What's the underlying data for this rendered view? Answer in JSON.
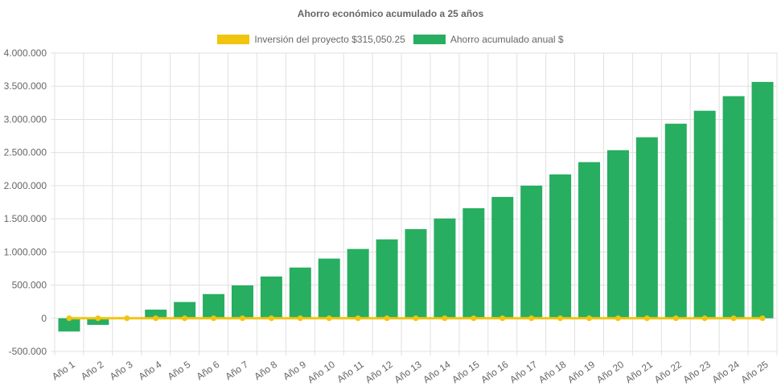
{
  "chart_data": {
    "type": "bar",
    "title": "Ahorro económico acumulado a 25 años",
    "categories": [
      "Año 1",
      "Año 2",
      "Año 3",
      "Año 4",
      "Año 5",
      "Año 6",
      "Año 7",
      "Año 8",
      "Año 9",
      "Año 10",
      "Año 11",
      "Año 12",
      "Año 13",
      "Año 14",
      "Año 15",
      "Año 16",
      "Año 17",
      "Año 18",
      "Año 19",
      "Año 20",
      "Año 21",
      "Año 22",
      "Año 23",
      "Año 24",
      "Año 25"
    ],
    "series": [
      {
        "name": "Inversión del proyecto $315,050.25",
        "type": "line",
        "color": "#f1c40f",
        "values": [
          0,
          0,
          0,
          0,
          0,
          0,
          0,
          0,
          0,
          0,
          0,
          0,
          0,
          0,
          0,
          0,
          0,
          0,
          0,
          0,
          0,
          0,
          0,
          0,
          0
        ]
      },
      {
        "name": "Ahorro acumulado anual $",
        "type": "bar",
        "color": "#27ae60",
        "values": [
          -200000,
          -100000,
          0,
          130000,
          245000,
          365000,
          495000,
          630000,
          765000,
          900000,
          1045000,
          1190000,
          1345000,
          1505000,
          1660000,
          1830000,
          2000000,
          2170000,
          2355000,
          2535000,
          2730000,
          2935000,
          3130000,
          3350000,
          3565000
        ]
      }
    ],
    "ylim": [
      -500000,
      4000000
    ],
    "yticks": [
      "4.000.000",
      "3.500.000",
      "3.000.000",
      "2.500.000",
      "2.000.000",
      "1.500.000",
      "1.000.000",
      "500.000",
      "0",
      "-500.000"
    ],
    "ytick_values": [
      4000000,
      3500000,
      3000000,
      2500000,
      2000000,
      1500000,
      1000000,
      500000,
      0,
      -500000
    ],
    "grid": true,
    "legend": "top"
  }
}
